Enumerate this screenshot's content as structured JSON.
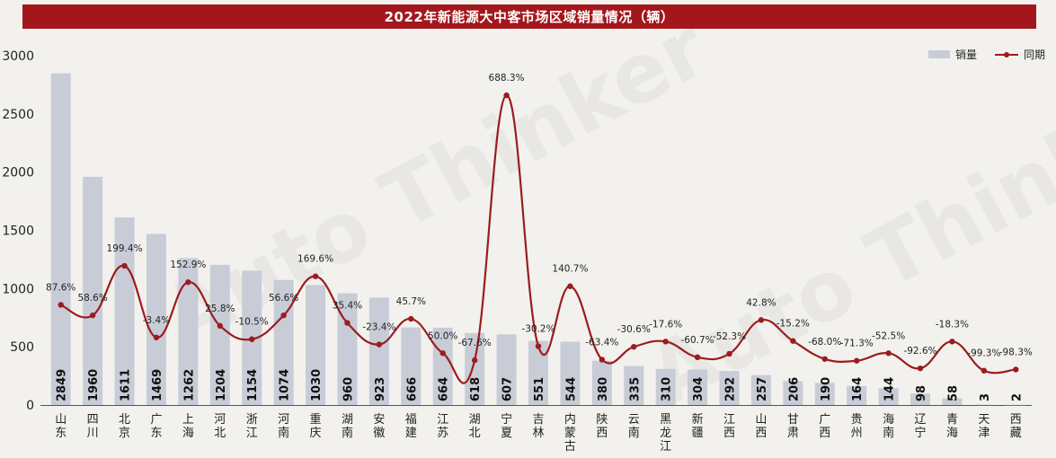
{
  "title": "2022年新能源大中客市场区域销量情况（辆）",
  "legend": {
    "bar_label": "销量",
    "line_label": "同期"
  },
  "watermark": {
    "text": "Auto Thinker"
  },
  "colors": {
    "title_bg": "#a3171c",
    "bar": "#c8ccd7",
    "line": "#9b1c1f",
    "background": "#f2f1ed"
  },
  "chart_data": {
    "type": "bar",
    "title": "2022年新能源大中客市场区域销量情况（辆）",
    "xlabel": "",
    "ylabel": "",
    "ylim": [
      0,
      3000
    ],
    "yticks": [
      0,
      500,
      1000,
      1500,
      2000,
      2500,
      3000
    ],
    "grid": false,
    "legend_position": "top-right",
    "categories": [
      "山东",
      "四川",
      "北京",
      "广东",
      "上海",
      "河北",
      "浙江",
      "河南",
      "重庆",
      "湖南",
      "安徽",
      "福建",
      "江苏",
      "湖北",
      "宁夏",
      "吉林",
      "内蒙古",
      "陕西",
      "云南",
      "黑龙江",
      "新疆",
      "江西",
      "山西",
      "甘肃",
      "广西",
      "贵州",
      "海南",
      "辽宁",
      "青海",
      "天津",
      "西藏"
    ],
    "series": [
      {
        "name": "销量",
        "type": "bar",
        "values": [
          2849,
          1960,
          1611,
          1469,
          1262,
          1204,
          1154,
          1074,
          1030,
          960,
          923,
          666,
          664,
          618,
          607,
          551,
          544,
          380,
          335,
          310,
          304,
          292,
          257,
          206,
          190,
          164,
          144,
          98,
          58,
          3,
          2
        ]
      },
      {
        "name": "同期",
        "type": "line",
        "labels": [
          "87.6%",
          "58.6%",
          "199.4%",
          "-3.4%",
          "152.9%",
          "25.8%",
          "-10.5%",
          "56.6%",
          "169.6%",
          "35.4%",
          "-23.4%",
          "45.7%",
          "50.0%",
          "-67.6%",
          "688.3%",
          "-30.2%",
          "140.7%",
          "-63.4%",
          "-30.6%",
          "-17.6%",
          "-60.7%",
          "-52.3%",
          "42.8%",
          "-15.2%",
          "-68.0%",
          "-71.3%",
          "-52.5%",
          "-92.6%",
          "-18.3%",
          "-99.3%",
          "-98.3%"
        ],
        "values": [
          860,
          770,
          1195,
          580,
          1055,
          680,
          565,
          770,
          1105,
          705,
          520,
          740,
          445,
          385,
          2660,
          505,
          1020,
          390,
          500,
          545,
          410,
          440,
          730,
          550,
          395,
          380,
          445,
          315,
          545,
          295,
          305
        ]
      }
    ]
  }
}
